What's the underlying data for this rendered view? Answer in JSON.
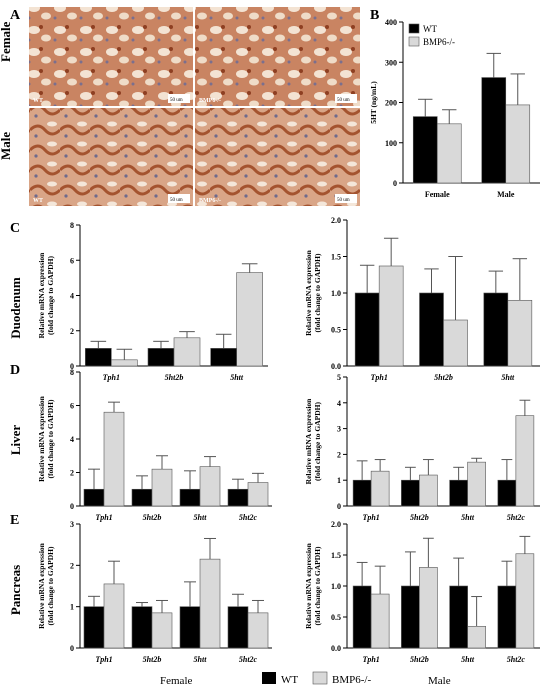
{
  "panel_letters": [
    "A",
    "B",
    "C",
    "D",
    "E"
  ],
  "micro": {
    "row_labels": [
      "Female",
      "Male"
    ],
    "tiles": [
      {
        "label": "WT",
        "scale": "50 um"
      },
      {
        "label": "BMP6-/-",
        "scale": "50 um"
      },
      {
        "label": "WT",
        "scale": "50 um"
      },
      {
        "label": "BMP6-/-",
        "scale": "50 um"
      }
    ]
  },
  "row_labels": {
    "C": "Duodenum",
    "D": "Liver",
    "E": "Pancreas"
  },
  "footer": {
    "left": "Female",
    "right": "Male"
  },
  "legend_entries": [
    "WT",
    "BMP6-/-"
  ],
  "colors": {
    "wt": "#000000",
    "ko": "#d9d9d9"
  },
  "chart_data": [
    {
      "id": "B",
      "type": "bar",
      "ylabel": "5HT (ng/mL)",
      "ylim": [
        0,
        400
      ],
      "yticks": [
        0,
        100,
        200,
        300,
        400
      ],
      "tick_decimals": 0,
      "categories": [
        "Female",
        "Male"
      ],
      "cat_italic": false,
      "series": [
        {
          "name": "WT",
          "values": [
            165,
            262
          ],
          "err": [
            43,
            60
          ]
        },
        {
          "name": "BMP6-/-",
          "values": [
            147,
            194
          ],
          "err": [
            35,
            77
          ]
        }
      ],
      "legend": [
        "WT",
        "BMP6-/-"
      ]
    },
    {
      "id": "C-female",
      "type": "bar",
      "ylabel": [
        "Relative mRNA expression",
        "(fold change to GAPDH)"
      ],
      "ylim": [
        0,
        8
      ],
      "yticks": [
        0,
        2,
        4,
        6,
        8
      ],
      "tick_decimals": 0,
      "categories": [
        "Tph1",
        "5ht2b",
        "5htt"
      ],
      "cat_italic": true,
      "series": [
        {
          "values": [
            1.0,
            1.0,
            1.0
          ],
          "err": [
            0.4,
            0.4,
            0.8
          ]
        },
        {
          "values": [
            0.35,
            1.6,
            5.3
          ],
          "err": [
            0.6,
            0.35,
            0.5
          ]
        }
      ]
    },
    {
      "id": "C-male",
      "type": "bar",
      "ylabel": [
        "Relative mRNA expression",
        "(fold change to GAPDH)"
      ],
      "ylim": [
        0,
        2.0
      ],
      "yticks": [
        0,
        0.5,
        1.0,
        1.5,
        2.0
      ],
      "tick_decimals": 1,
      "categories": [
        "Tph1",
        "5ht2b",
        "5htt"
      ],
      "cat_italic": true,
      "series": [
        {
          "values": [
            1.0,
            1.0,
            1.0
          ],
          "err": [
            0.38,
            0.33,
            0.3
          ]
        },
        {
          "values": [
            1.37,
            0.63,
            0.9
          ],
          "err": [
            0.38,
            0.87,
            0.57
          ]
        }
      ]
    },
    {
      "id": "D-female",
      "type": "bar",
      "ylabel": [
        "Relative mRNA expression",
        "(fold change to GAPDH)"
      ],
      "ylim": [
        0,
        8
      ],
      "yticks": [
        0,
        2,
        4,
        6,
        8
      ],
      "tick_decimals": 0,
      "categories": [
        "Tph1",
        "5ht2b",
        "5htt",
        "5ht2c"
      ],
      "cat_italic": true,
      "series": [
        {
          "values": [
            1.0,
            1.0,
            1.0,
            1.0
          ],
          "err": [
            1.2,
            0.8,
            1.1,
            0.6
          ]
        },
        {
          "values": [
            5.6,
            2.2,
            2.35,
            1.4
          ],
          "err": [
            0.6,
            0.8,
            0.6,
            0.55
          ]
        }
      ]
    },
    {
      "id": "D-male",
      "type": "bar",
      "ylabel": [
        "Relative mRNA expression",
        "(fold change to GAPDH)"
      ],
      "ylim": [
        0,
        5
      ],
      "yticks": [
        0,
        1,
        2,
        3,
        4,
        5
      ],
      "tick_decimals": 0,
      "categories": [
        "Tph1",
        "5ht2b",
        "5htt",
        "5ht2c"
      ],
      "cat_italic": true,
      "series": [
        {
          "values": [
            1.0,
            1.0,
            1.0,
            1.0
          ],
          "err": [
            0.75,
            0.5,
            0.5,
            0.8
          ]
        },
        {
          "values": [
            1.35,
            1.2,
            1.7,
            3.5
          ],
          "err": [
            0.45,
            0.6,
            0.15,
            0.6
          ]
        }
      ]
    },
    {
      "id": "E-female",
      "type": "bar",
      "ylabel": [
        "Relative mRNA expression",
        "(fold change to GAPDH)"
      ],
      "ylim": [
        0,
        3
      ],
      "yticks": [
        0,
        1,
        2,
        3
      ],
      "tick_decimals": 0,
      "categories": [
        "Tph1",
        "5ht2b",
        "5htt",
        "5ht2c"
      ],
      "cat_italic": true,
      "series": [
        {
          "values": [
            1.0,
            1.0,
            1.0,
            1.0
          ],
          "err": [
            0.25,
            0.1,
            0.6,
            0.3
          ]
        },
        {
          "values": [
            1.55,
            0.85,
            2.15,
            0.85
          ],
          "err": [
            0.55,
            0.3,
            0.5,
            0.3
          ]
        }
      ]
    },
    {
      "id": "E-male",
      "type": "bar",
      "ylabel": [
        "Relative mRNA expression",
        "(fold change to GAPDH)"
      ],
      "ylim": [
        0,
        2.0
      ],
      "yticks": [
        0,
        0.5,
        1.0,
        1.5,
        2.0
      ],
      "tick_decimals": 1,
      "categories": [
        "Tph1",
        "5ht2b",
        "5htt",
        "5ht2c"
      ],
      "cat_italic": true,
      "series": [
        {
          "values": [
            1.0,
            1.0,
            1.0,
            1.0
          ],
          "err": [
            0.38,
            0.55,
            0.45,
            0.4
          ]
        },
        {
          "values": [
            0.87,
            1.3,
            0.35,
            1.52
          ],
          "err": [
            0.45,
            0.47,
            0.48,
            0.28
          ]
        }
      ]
    }
  ]
}
